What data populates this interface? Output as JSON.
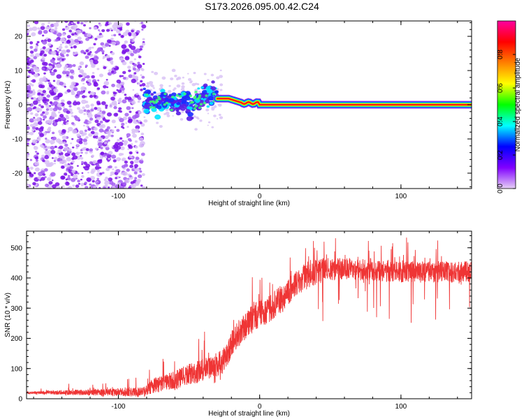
{
  "title": "S173.2026.095.00.42.C24",
  "chart_data": [
    {
      "type": "heatmap",
      "name": "spectrogram",
      "xlabel": "Height of straight line (km)",
      "ylabel": "Frequency (Hz)",
      "xlim": [
        -165,
        150
      ],
      "ylim": [
        -24.5,
        24.5
      ],
      "xticks": [
        -100,
        0,
        100
      ],
      "yticks": [
        -20,
        -10,
        0,
        10,
        20
      ],
      "colorbar": {
        "label": "Normalized spectral amplitude",
        "range": [
          0.0,
          1.0
        ],
        "ticks": [
          0.0,
          0.2,
          0.4,
          0.6,
          0.8
        ],
        "tick_labels": [
          "0.0",
          "0.2",
          "0.4",
          "0.6",
          "0.8"
        ],
        "colors": [
          "#e6d0f5",
          "#8000ff",
          "#0000ff",
          "#00ffff",
          "#00ff00",
          "#ffff00",
          "#ff8000",
          "#ff0000",
          "#ff00a0"
        ]
      },
      "features": {
        "noise_region_x": [
          -165,
          -82
        ],
        "signal_line_x": [
          -30,
          150
        ],
        "signal_frequency_hz": 0.0,
        "transition_blobs_x": [
          -82,
          -30
        ]
      }
    },
    {
      "type": "line",
      "name": "snr",
      "xlabel": "Height of straight line (km)",
      "ylabel": "SNR (10 * v/v)",
      "xlim": [
        -165,
        150
      ],
      "ylim": [
        0,
        555
      ],
      "xticks": [
        -100,
        0,
        100
      ],
      "yticks": [
        0,
        100,
        200,
        300,
        400,
        500
      ],
      "color": "#ef3535",
      "trend_x": [
        -165,
        -82,
        -75,
        -60,
        -50,
        -40,
        -32,
        -25,
        -18,
        -10,
        -5,
        5,
        15,
        25,
        35,
        50,
        65,
        80,
        100,
        120,
        150
      ],
      "trend_y": [
        20,
        22,
        45,
        60,
        80,
        95,
        110,
        125,
        200,
        240,
        270,
        290,
        330,
        380,
        410,
        430,
        430,
        425,
        420,
        420,
        420
      ],
      "noise_amplitude": [
        6,
        25,
        40,
        50,
        55,
        60,
        60,
        65,
        70,
        70,
        70,
        70,
        70,
        70,
        70,
        60,
        55,
        55,
        55,
        55,
        55
      ]
    }
  ]
}
